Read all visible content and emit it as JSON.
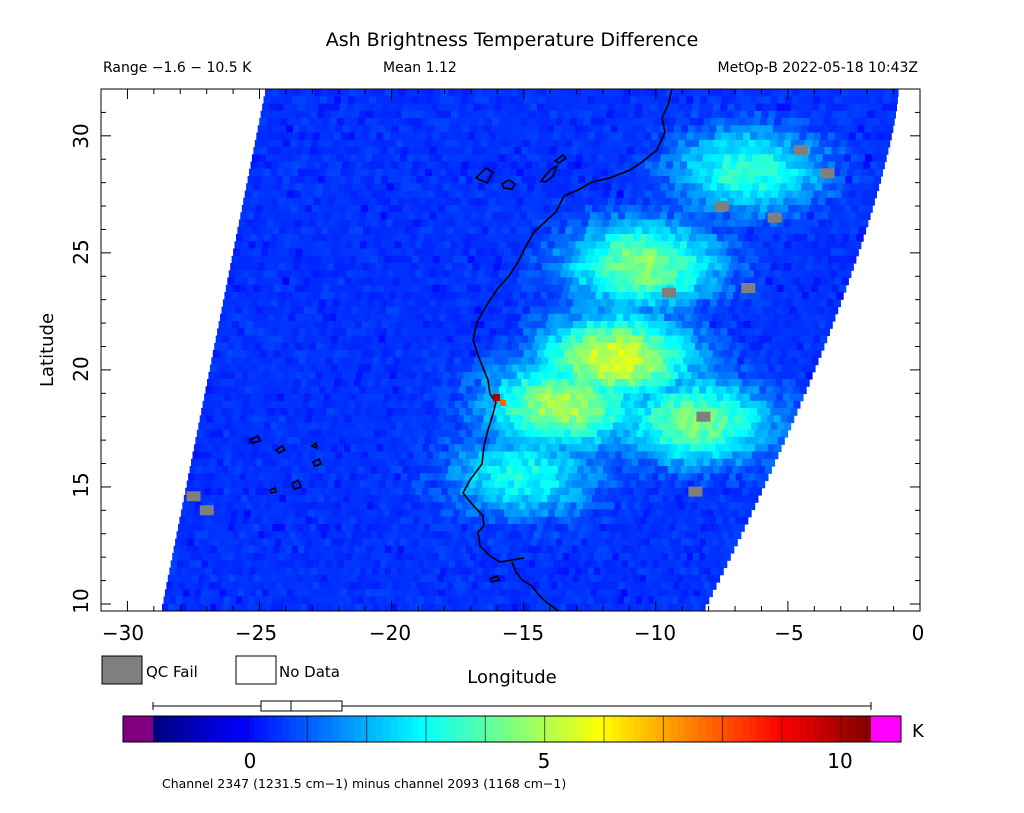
{
  "header": {
    "title": "Ash Brightness Temperature Difference",
    "range": "Range −1.6 − 10.5 K",
    "mean": "Mean 1.12",
    "instrument": "MetOp-B 2022-05-18 10:43Z"
  },
  "axes": {
    "x_label": "Longitude",
    "y_label": "Latitude",
    "x_ticks": [
      "−30",
      "−25",
      "−20",
      "−15",
      "−10",
      "−5",
      "0"
    ],
    "y_ticks": [
      "10",
      "15",
      "20",
      "25",
      "30"
    ]
  },
  "legend": {
    "qc_fail": "QC Fail",
    "no_data": "No Data",
    "qc_fail_color": "#7f7f7f",
    "no_data_color": "#ffffff"
  },
  "colorbar": {
    "unit": "K",
    "ticks": [
      "0",
      "5",
      "10"
    ],
    "caption": "Channel 2347 (1231.5 cm−1) minus channel 2093 (1168 cm−1)",
    "under_color": "#800080",
    "over_color": "#ff00ff"
  },
  "map": {
    "lon_range": [
      -31,
      0
    ],
    "lat_range": [
      9.7,
      32
    ],
    "colormap": "jet",
    "value_range": [
      -1.6,
      10.5
    ],
    "background_value": 0.3,
    "plume_regions": [
      {
        "lon": -10.5,
        "lat": 24.5,
        "value": 4.6
      },
      {
        "lon": -11.5,
        "lat": 20.5,
        "value": 5.6
      },
      {
        "lon": -13.5,
        "lat": 18.5,
        "value": 5.0
      },
      {
        "lon": -8.5,
        "lat": 17.8,
        "value": 4.4
      },
      {
        "lon": -6.5,
        "lat": 28.5,
        "value": 3.6
      },
      {
        "lon": -15.0,
        "lat": 15.5,
        "value": 3.2
      }
    ]
  }
}
